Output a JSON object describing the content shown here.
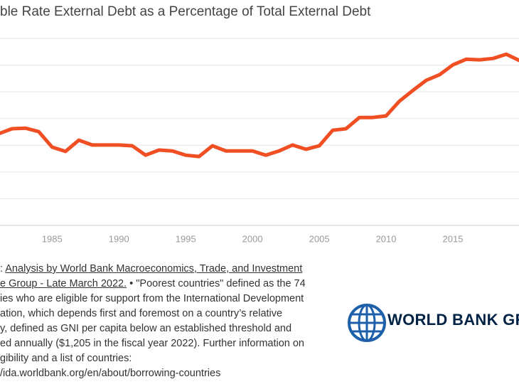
{
  "chart_data": {
    "type": "line",
    "title": "ble Rate External Debt as a Percentage of Total External Debt",
    "x": [
      1981,
      1982,
      1983,
      1984,
      1985,
      1986,
      1987,
      1988,
      1989,
      1990,
      1991,
      1992,
      1993,
      1994,
      1995,
      1996,
      1997,
      1998,
      1999,
      2000,
      2001,
      2002,
      2003,
      2004,
      2005,
      2006,
      2007,
      2008,
      2009,
      2010,
      2011,
      2012,
      2013,
      2014,
      2015,
      2016,
      2017,
      2018,
      2019,
      2020
    ],
    "series": [
      {
        "color": "#f04e23",
        "values": [
          34.3,
          36.2,
          36.4,
          35.1,
          29.3,
          27.7,
          31.9,
          30.1,
          30.1,
          30.1,
          29.8,
          26.3,
          28.2,
          27.9,
          26.3,
          25.8,
          29.8,
          27.9,
          27.9,
          27.9,
          26.3,
          27.9,
          30.1,
          28.5,
          29.8,
          35.6,
          36.2,
          40.4,
          40.4,
          41.0,
          46.5,
          50.5,
          54.3,
          56.4,
          60.1,
          62.2,
          62.0,
          62.5,
          64.1,
          61.7
        ]
      }
    ],
    "xlim": [
      1981.1,
      2019.95
    ],
    "xticks": [
      1985,
      1990,
      1995,
      2000,
      2005,
      2010,
      2015
    ],
    "ylim": [
      0,
      70
    ],
    "yticks": [
      0,
      10,
      20,
      30,
      40,
      50,
      60,
      70
    ],
    "grid": true
  },
  "footer_lines": [
    [
      {
        "text": ": "
      },
      {
        "text": "Analysis by World Bank Macroeconomics, Trade, and Investment",
        "link": true
      }
    ],
    [
      {
        "text": "e Group - Late March 2022.",
        "link": true
      },
      {
        "text": " • \"Poorest countries\" defined as the 74"
      }
    ],
    [
      {
        "text": "ies who are eligible for support from the International Development"
      }
    ],
    [
      {
        "text": "ation, which depends first and foremost on a country’s relative"
      }
    ],
    [
      {
        "text": "y, defined as GNI per capita below an established threshold and"
      }
    ],
    [
      {
        "text": "ed annually ($1,205 in the fiscal year 2022). Further information on"
      }
    ],
    [
      {
        "text": "gibility and a list of countries:"
      }
    ],
    [
      {
        "text": "/ida.worldbank.org/en/about/borrowing-countries"
      }
    ]
  ],
  "logo": {
    "text": "WORLD BANK GROU"
  }
}
